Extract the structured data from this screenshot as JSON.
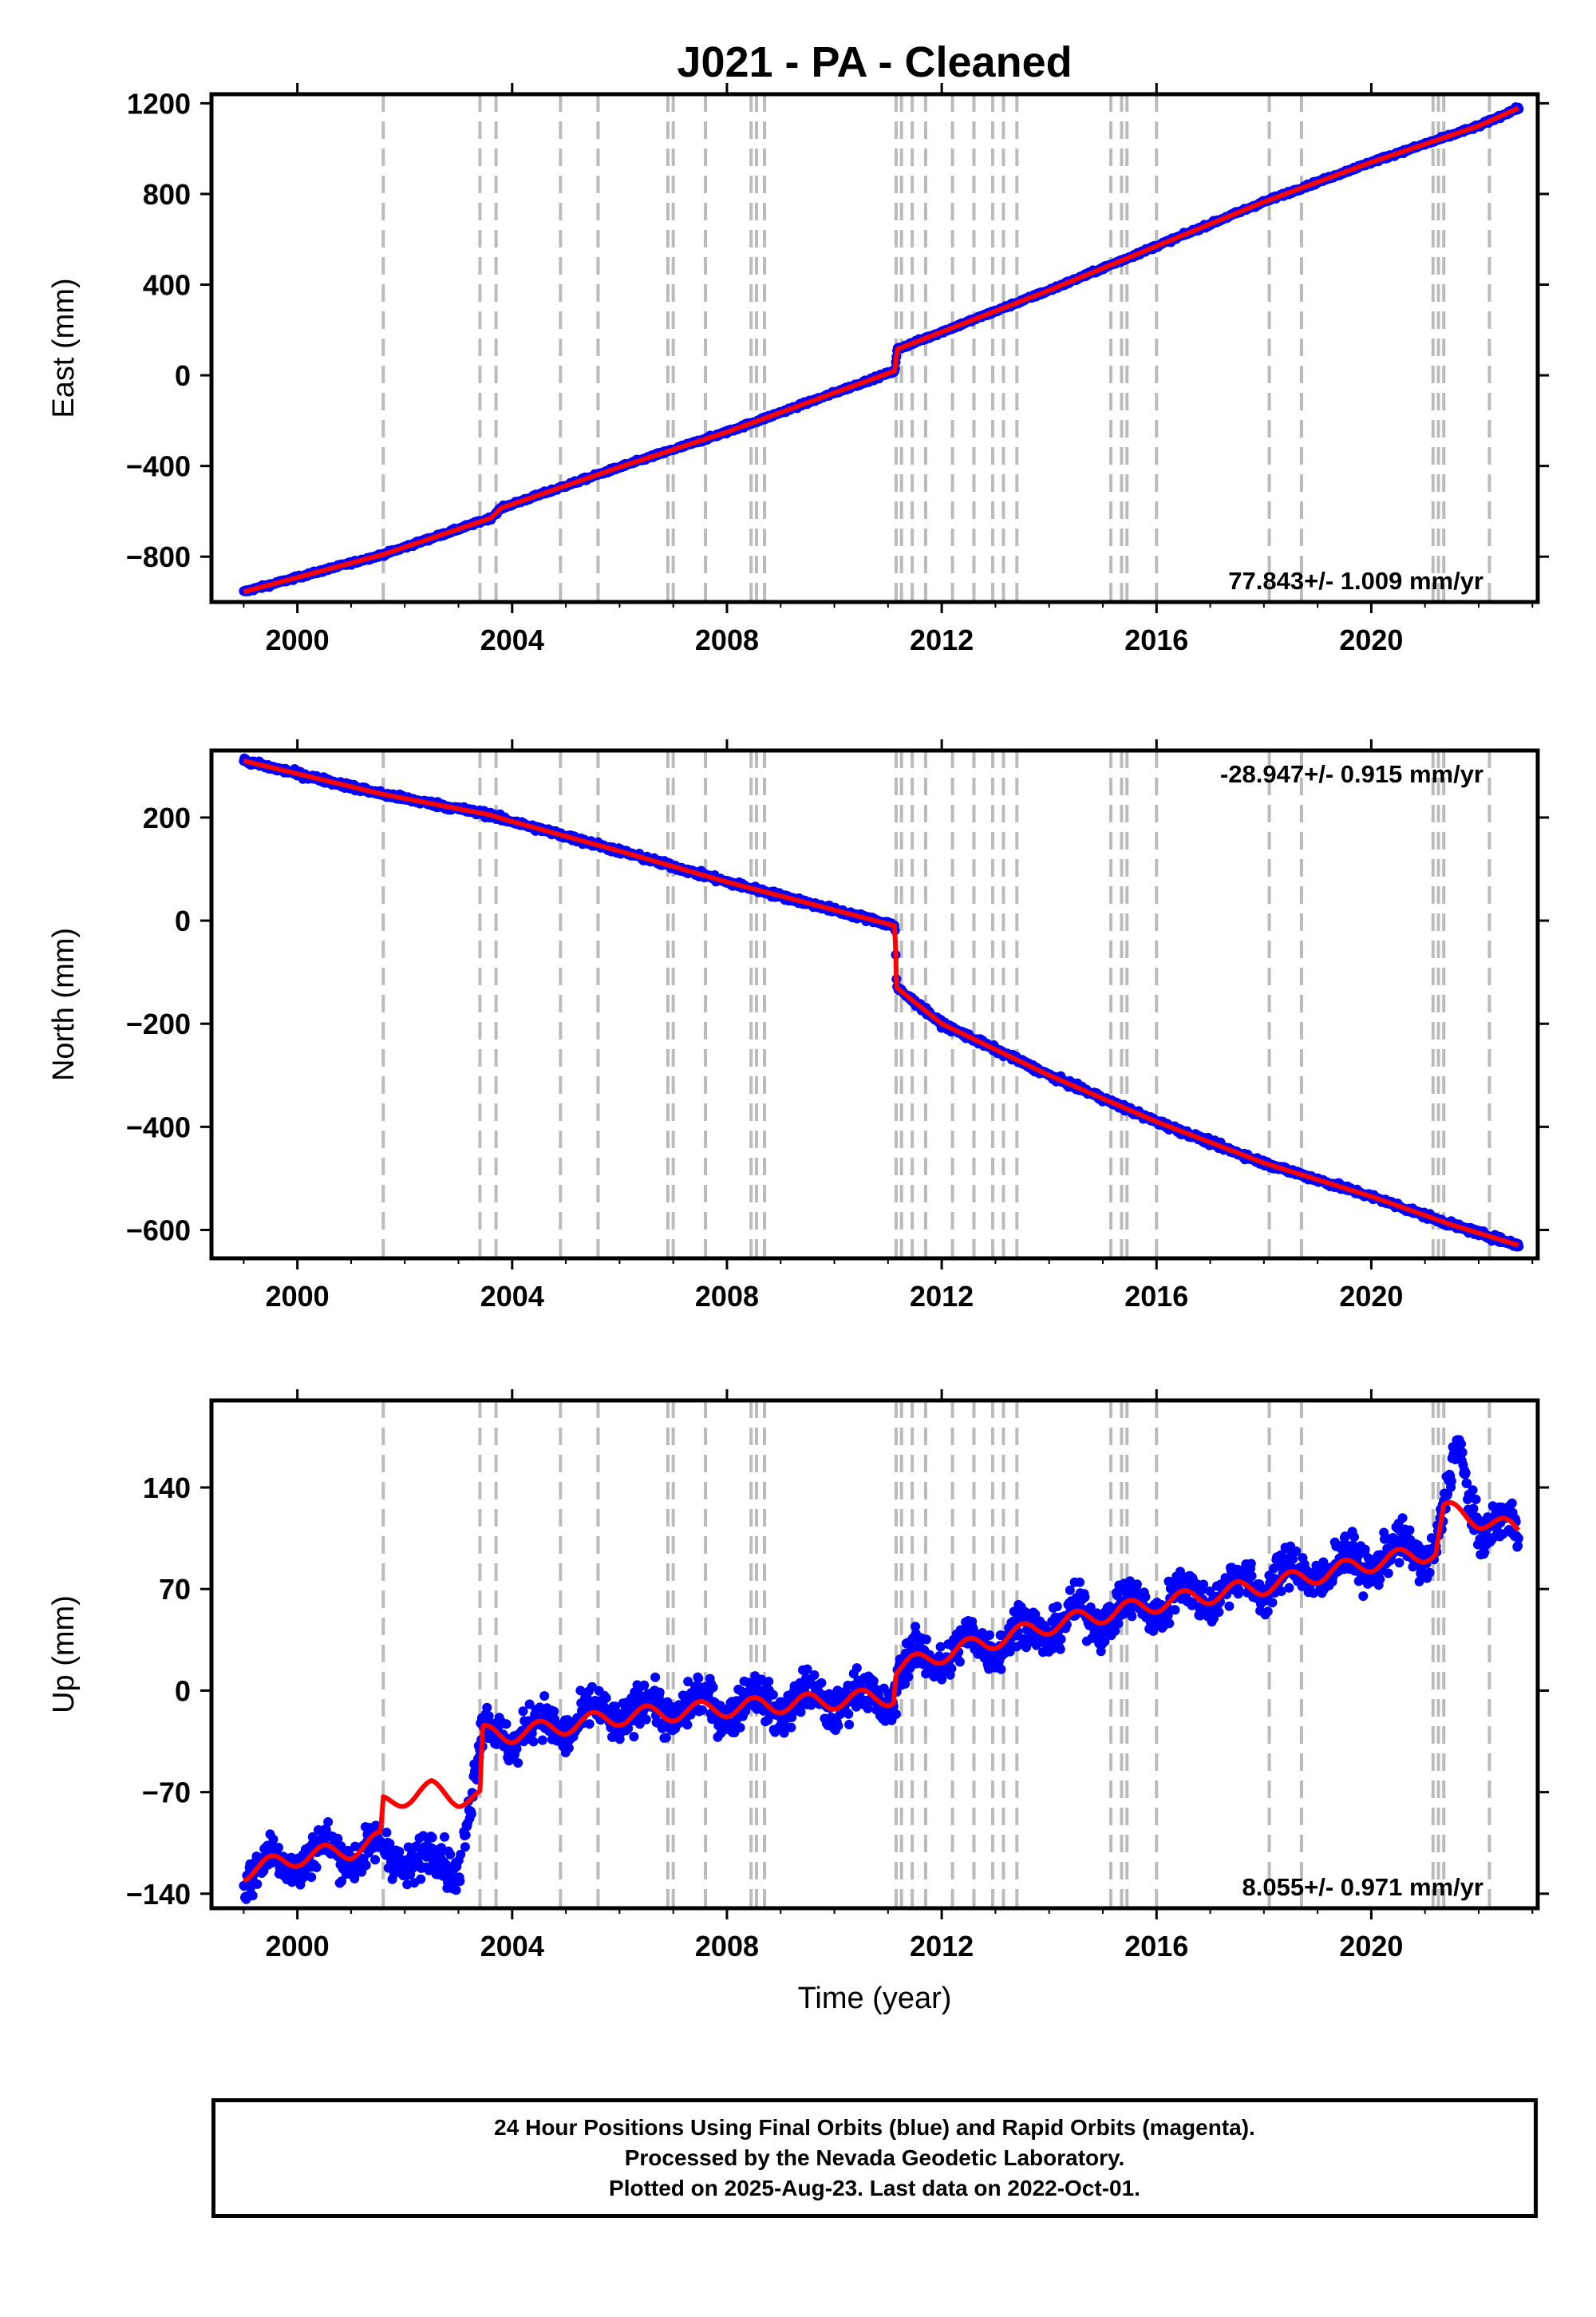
{
  "title": "J021  - PA - Cleaned",
  "xlabel": "Time (year)",
  "footer": {
    "line1": "24 Hour Positions Using Final Orbits (blue) and Rapid Orbits (magenta).",
    "line2": "Processed by the Nevada Geodetic Laboratory.",
    "line3": "Plotted on 2025-Aug-23. Last data on 2022-Oct-01."
  },
  "colors": {
    "data": "#0000ff",
    "model": "#ff0000",
    "steps": "#bbbbbb",
    "axis": "#000000"
  },
  "steps": [
    2001.6,
    2003.4,
    2003.7,
    2004.9,
    2005.6,
    2006.9,
    2007.0,
    2007.6,
    2008.45,
    2008.55,
    2008.7,
    2011.15,
    2011.25,
    2011.45,
    2011.7,
    2012.2,
    2012.6,
    2012.95,
    2013.15,
    2013.4,
    2015.15,
    2015.35,
    2015.45,
    2016.0,
    2018.1,
    2018.7,
    2021.15,
    2021.25,
    2021.35,
    2022.2
  ],
  "chart_data": [
    {
      "type": "scatter",
      "panel": "east",
      "ylabel": "East (mm)",
      "rate_label": "77.843+/- 1.009 mm/yr",
      "rate_position": "bottom-right",
      "xlim": [
        1998.4,
        2023.1
      ],
      "ylim": [
        -1000,
        1240
      ],
      "xticks": [
        2000,
        2004,
        2008,
        2012,
        2016,
        2020
      ],
      "yticks": [
        -800,
        -400,
        0,
        400,
        800,
        1200
      ],
      "tick_labels": [
        "−800",
        "−400",
        "0",
        "400",
        "800",
        "1200"
      ],
      "series": [
        {
          "name": "Final Orbits",
          "color": "blue",
          "scatter_sd": 5,
          "x": [
            1999.0,
            2001.6,
            2003.6,
            2003.8,
            2006.0,
            2008.0,
            2011.13,
            2011.17,
            2014.0,
            2016.0,
            2018.0,
            2020.0,
            2021.5,
            2022.0,
            2022.75
          ],
          "y": [
            -955,
            -790,
            -630,
            -585,
            -405,
            -250,
            20,
            115,
            375,
            570,
            765,
            940,
            1060,
            1100,
            1180
          ]
        },
        {
          "name": "Model",
          "color": "red",
          "x": [
            1999.0,
            2001.6,
            2003.6,
            2003.8,
            2006.0,
            2008.0,
            2011.13,
            2011.17,
            2014.0,
            2016.0,
            2018.0,
            2020.0,
            2021.5,
            2022.0,
            2022.75
          ],
          "y": [
            -955,
            -790,
            -630,
            -585,
            -405,
            -250,
            20,
            115,
            375,
            570,
            765,
            940,
            1060,
            1100,
            1180
          ]
        }
      ]
    },
    {
      "type": "scatter",
      "panel": "north",
      "ylabel": "North (mm)",
      "rate_label": "-28.947+/- 0.915 mm/yr",
      "rate_position": "top-right",
      "xlim": [
        1998.4,
        2023.1
      ],
      "ylim": [
        -655,
        330
      ],
      "xticks": [
        2000,
        2004,
        2008,
        2012,
        2016,
        2020
      ],
      "yticks": [
        -600,
        -400,
        -200,
        0,
        200
      ],
      "tick_labels": [
        "−600",
        "−400",
        "−200",
        "0",
        "200"
      ],
      "series": [
        {
          "name": "Final Orbits",
          "color": "blue",
          "scatter_sd": 4,
          "x": [
            1999.0,
            2001.6,
            2003.6,
            2003.8,
            2006.0,
            2008.0,
            2011.13,
            2011.16,
            2012.0,
            2014.0,
            2016.0,
            2018.0,
            2020.0,
            2021.5,
            2022.75
          ],
          "y": [
            310,
            245,
            205,
            198,
            135,
            75,
            -10,
            -130,
            -200,
            -300,
            -390,
            -470,
            -535,
            -590,
            -630
          ]
        },
        {
          "name": "Model",
          "color": "red",
          "x": [
            1999.0,
            2001.6,
            2003.6,
            2003.8,
            2006.0,
            2008.0,
            2011.13,
            2011.16,
            2012.0,
            2014.0,
            2016.0,
            2018.0,
            2020.0,
            2021.5,
            2022.75
          ],
          "y": [
            310,
            245,
            205,
            198,
            135,
            75,
            -10,
            -130,
            -200,
            -300,
            -390,
            -470,
            -535,
            -590,
            -630
          ]
        }
      ]
    },
    {
      "type": "scatter",
      "panel": "up",
      "ylabel": "Up (mm)",
      "rate_label": "8.055+/- 0.971 mm/yr",
      "rate_position": "bottom-right",
      "xlim": [
        1998.4,
        2023.1
      ],
      "ylim": [
        -150,
        200
      ],
      "xticks": [
        2000,
        2004,
        2008,
        2012,
        2016,
        2020
      ],
      "yticks": [
        -140,
        -70,
        0,
        70,
        140
      ],
      "tick_labels": [
        "−140",
        "−70",
        "0",
        "70",
        "140"
      ],
      "series": [
        {
          "name": "Final Orbits",
          "color": "blue",
          "scatter_sd": 10,
          "segments": [
            [
              1999.0,
              2001.55
            ],
            [
              2001.6,
              2003.05
            ],
            [
              2003.1,
              2011.13
            ],
            [
              2011.15,
              2022.75
            ]
          ],
          "x": [
            1999.0,
            2000.0,
            2001.0,
            2001.6,
            2003.0,
            2003.45,
            2004.0,
            2006.0,
            2008.0,
            2011.1,
            2011.2,
            2012.0,
            2014.0,
            2016.0,
            2018.0,
            2020.0,
            2021.2,
            2021.4,
            2021.6,
            2022.0,
            2022.75
          ],
          "y": [
            -125,
            -115,
            -110,
            -112,
            -120,
            -30,
            -30,
            -15,
            -10,
            -5,
            15,
            25,
            45,
            60,
            75,
            90,
            100,
            130,
            165,
            115,
            110
          ]
        },
        {
          "name": "Model",
          "color": "red",
          "x": [
            1999.0,
            2000.0,
            2001.0,
            2001.55,
            2001.6,
            2002.5,
            2003.0,
            2003.4,
            2003.45,
            2004.0,
            2006.0,
            2008.0,
            2011.1,
            2011.15,
            2012.0,
            2014.0,
            2016.0,
            2018.0,
            2020.0,
            2021.2,
            2021.35,
            2022.0,
            2022.75
          ],
          "y": [
            -125,
            -115,
            -110,
            -103,
            -78,
            -68,
            -74,
            -74,
            -30,
            -30,
            -18,
            -12,
            -4,
            15,
            25,
            45,
            60,
            72,
            88,
            96,
            125,
            118,
            110
          ]
        }
      ]
    }
  ]
}
